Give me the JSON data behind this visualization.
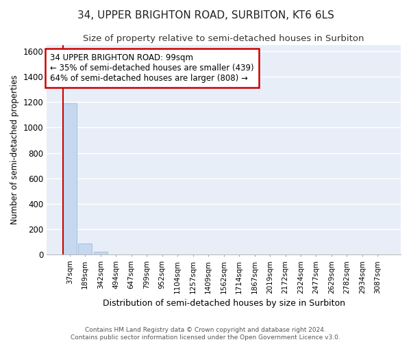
{
  "title": "34, UPPER BRIGHTON ROAD, SURBITON, KT6 6LS",
  "subtitle": "Size of property relative to semi-detached houses in Surbiton",
  "xlabel": "Distribution of semi-detached houses by size in Surbiton",
  "ylabel": "Number of semi-detached properties",
  "footer_line1": "Contains HM Land Registry data © Crown copyright and database right 2024.",
  "footer_line2": "Contains public sector information licensed under the Open Government Licence v3.0.",
  "annotation_line1": "34 UPPER BRIGHTON ROAD: 99sqm",
  "annotation_line2": "← 35% of semi-detached houses are smaller (439)",
  "annotation_line3": "64% of semi-detached houses are larger (808) →",
  "categories": [
    "37sqm",
    "189sqm",
    "342sqm",
    "494sqm",
    "647sqm",
    "799sqm",
    "952sqm",
    "1104sqm",
    "1257sqm",
    "1409sqm",
    "1562sqm",
    "1714sqm",
    "1867sqm",
    "2019sqm",
    "2172sqm",
    "2324sqm",
    "2477sqm",
    "2629sqm",
    "2782sqm",
    "2934sqm",
    "3087sqm"
  ],
  "values": [
    1190,
    90,
    25,
    0,
    0,
    0,
    0,
    0,
    0,
    0,
    0,
    0,
    0,
    0,
    0,
    0,
    0,
    0,
    0,
    0,
    0
  ],
  "bar_color": "#c5d8f0",
  "bar_edge_color": "#a8c4e0",
  "background_color": "#e8eef8",
  "grid_color": "#ffffff",
  "fig_background": "#ffffff",
  "red_line_color": "#cc0000",
  "ylim": [
    0,
    1650
  ],
  "yticks": [
    0,
    200,
    400,
    600,
    800,
    1000,
    1200,
    1400,
    1600
  ],
  "title_fontsize": 11,
  "subtitle_fontsize": 9.5,
  "annotation_fontsize": 8.5,
  "xlabel_fontsize": 9,
  "ylabel_fontsize": 8.5,
  "tick_fontsize": 8.5,
  "xtick_fontsize": 7.5,
  "footer_fontsize": 6.5
}
